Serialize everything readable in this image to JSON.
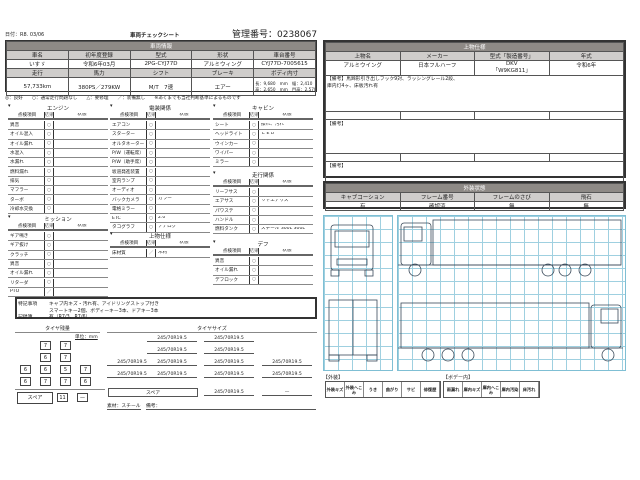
{
  "header": {
    "date": "日付：R8. 03/06",
    "title": "車両チェックシート",
    "control_no": "管理番号：0238067"
  },
  "vehicle": {
    "heading": "車両情報",
    "labels1": [
      "車名",
      "初年度登録",
      "型式",
      "形状",
      "車台番号"
    ],
    "values1": [
      "いすゞ",
      "令和6年03月",
      "2PG-CYJ77D",
      "アルミウィング",
      "CYJ77D-7005615"
    ],
    "labels2": [
      "走行",
      "馬力",
      "シフト",
      "ブレーキ",
      "ボディ内寸"
    ],
    "values2": [
      "57,733km",
      "380PS／279KW",
      "M/T　7速",
      "エアー"
    ],
    "dims": [
      "長：9,680　mm　幅：2,410　mm",
      "高：2,650　mm　門高：2,570　mm"
    ]
  },
  "legend_text": "◎：良好　　○：通常走行問題なし　　△：要修理　　／：装備無し　　※あくまでも当社判断基準によるものです",
  "col_headers": [
    "点検項目",
    "結果",
    "状態"
  ],
  "sections": [
    {
      "title": "エンジン",
      "rows": [
        [
          "異音",
          "○",
          ""
        ],
        [
          "オイル混入",
          "○",
          ""
        ],
        [
          "オイル漏れ",
          "○",
          ""
        ],
        [
          "水混入",
          "○",
          ""
        ],
        [
          "水漏れ",
          "○",
          ""
        ],
        [
          "燃料漏れ",
          "○",
          ""
        ],
        [
          "排気",
          "○",
          ""
        ],
        [
          "マフラー",
          "○",
          ""
        ],
        [
          "ターボ",
          "○",
          ""
        ],
        [
          "冷却水交換",
          "○",
          ""
        ]
      ]
    },
    {
      "title": "ミッション",
      "rows": [
        [
          "ギア鳴き",
          "○",
          ""
        ],
        [
          "ギア抜け",
          "○",
          ""
        ],
        [
          "クラッチ",
          "○",
          ""
        ],
        [
          "異音",
          "○",
          ""
        ],
        [
          "オイル漏れ",
          "○",
          ""
        ],
        [
          "リターダ",
          "○",
          ""
        ],
        [
          "PTO",
          "／",
          ""
        ]
      ]
    },
    {
      "title": "電装関係",
      "rows": [
        [
          "エアコン",
          "○",
          ""
        ],
        [
          "スターター",
          "○",
          ""
        ],
        [
          "オルタネーター",
          "○",
          ""
        ],
        [
          "P/W（運転席）",
          "○",
          ""
        ],
        [
          "P/W（助手席）",
          "○",
          ""
        ],
        [
          "坂道発進装置",
          "○",
          ""
        ],
        [
          "室内ランプ",
          "○",
          ""
        ],
        [
          "オーディオ",
          "○",
          ""
        ],
        [
          "バックカメラ",
          "○",
          "カラー"
        ],
        [
          "電格ミラー",
          "○",
          ""
        ],
        [
          "ETC",
          "○",
          "2.0"
        ],
        [
          "タコグラフ",
          "○",
          "アナログ"
        ]
      ]
    },
    {
      "title": "上物仕様",
      "rows": [
        [
          "床材質",
          "／",
          "木材"
        ]
      ]
    },
    {
      "title": "キャビン",
      "rows": [
        [
          "シート",
          "○",
          "擦れ、汚れ"
        ],
        [
          "ヘッドライト",
          "○",
          "ＬＥＤ"
        ],
        [
          "ウインカー",
          "○",
          ""
        ],
        [
          "ワイパー",
          "○",
          ""
        ],
        [
          "ミラー",
          "○",
          ""
        ]
      ]
    },
    {
      "title": "走行関係",
      "rows": [
        [
          "リーフサス",
          "○",
          ""
        ],
        [
          "エアサス",
          "○",
          "リヤエアサス"
        ],
        [
          "パワステ",
          "○",
          ""
        ],
        [
          "ハンドル",
          "○",
          ""
        ],
        [
          "燃料タンク",
          "○",
          "スチール 300L 300L"
        ]
      ]
    },
    {
      "title": "デフ",
      "rows": [
        [
          "異音",
          "○",
          ""
        ],
        [
          "オイル漏れ",
          "○",
          ""
        ],
        [
          "デフロック",
          "○",
          ""
        ]
      ]
    }
  ],
  "notes": {
    "label1": "特記事項",
    "line1": "キャブ内キズ・汚れ有、アイドリングストップ付き",
    "line2": "スマートキー2個、ボディーキー3本、ドアキー3本",
    "label2": "記録簿",
    "line3": "有（R7/3、R7/6）"
  },
  "tires": {
    "remain_title": "タイヤ残量",
    "unit": "単位：mm",
    "remain_rows": [
      [
        "7",
        "7"
      ],
      [
        "6",
        "7"
      ],
      [
        "6",
        "6",
        "5",
        "7"
      ],
      [
        "6",
        "7",
        "7",
        "6"
      ]
    ],
    "spare_label": "スペア",
    "spare_value": "11",
    "spare_extra": "—",
    "size_title": "タイヤサイズ",
    "size_rows": [
      [
        "245/70R19.5",
        "245/70R19.5"
      ],
      [
        "245/70R19.5",
        "245/70R19.5"
      ],
      [
        "245/70R19.5",
        "245/70R19.5",
        "245/70R19.5",
        "245/70R19.5"
      ],
      [
        "245/70R19.5",
        "245/70R19.5",
        "245/70R19.5",
        "245/70R19.5"
      ]
    ],
    "spare_size": "245/70R19.5",
    "spare_size_extra": "—",
    "material": "素材：スチール",
    "remarks": "備考："
  },
  "upper": {
    "heading": "上物仕様",
    "labels": [
      "上物名",
      "メーカー",
      "型式「製造番号」",
      "年式"
    ],
    "values": [
      "アルミウイング",
      "日本フルハーフ",
      "DKV",
      "令和6年"
    ],
    "serial": "「W9KG811」",
    "remark1_label": "【備考】",
    "remark1": "馬蹄形引き出しフック9対、ラッシングレール2段、",
    "remark1b": "庫内灯4ヶ、床板汚れ有",
    "remark2_label": "【備考】",
    "remark3_label": "【備考】"
  },
  "exterior": {
    "heading": "外装状態",
    "labels": [
      "キャブコーション",
      "フレーム番号",
      "フレームのさび",
      "飛石"
    ],
    "values": [
      "有",
      "確認済",
      "無",
      "無"
    ]
  },
  "diagram_legend": {
    "outer_label": "【外装】",
    "inner_label": "【ボデー内】",
    "outer": [
      "外装キズ",
      "外装へこみ",
      "うき",
      "曲がり",
      "サビ",
      "修復歴"
    ],
    "inner": [
      "雨漏れ",
      "庫内キズ",
      "庫内へこみ",
      "庫内汚染",
      "床汚れ"
    ]
  },
  "colors": {
    "header_gray": "#8e8a86",
    "label_gray": "#cfcdcb",
    "grid_blue": "#9fd0e0"
  }
}
